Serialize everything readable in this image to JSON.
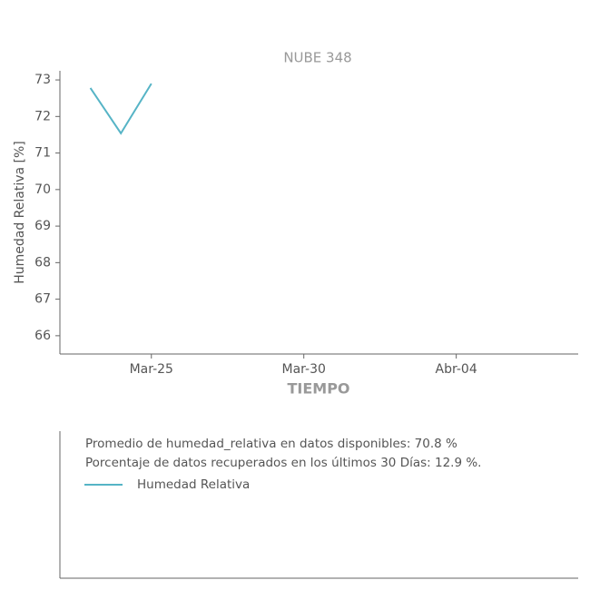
{
  "chart_data": {
    "type": "line",
    "title": "NUBE 348",
    "xlabel": "TIEMPO",
    "ylabel": "Humedad Relativa [%]",
    "x": [
      "03-23",
      "03-24",
      "03-25"
    ],
    "series": [
      {
        "name": "Humedad Relativa",
        "color": "#56b4c6",
        "values": [
          72.78,
          71.54,
          72.9
        ]
      }
    ],
    "xlim": [
      "03-22",
      "04-08"
    ],
    "xticks": [
      {
        "value": "03-25",
        "label": "Mar-25"
      },
      {
        "value": "03-30",
        "label": "Mar-30"
      },
      {
        "value": "04-04",
        "label": "Abr-04"
      }
    ],
    "ylim": [
      65.5,
      73.25
    ],
    "yticks": [
      66,
      67,
      68,
      69,
      70,
      71,
      72,
      73
    ],
    "notes": [
      "Promedio de humedad_relativa en datos disponibles: 70.8 %",
      "Porcentaje de datos recuperados en los últimos 30 Días: 12.9 %."
    ]
  }
}
